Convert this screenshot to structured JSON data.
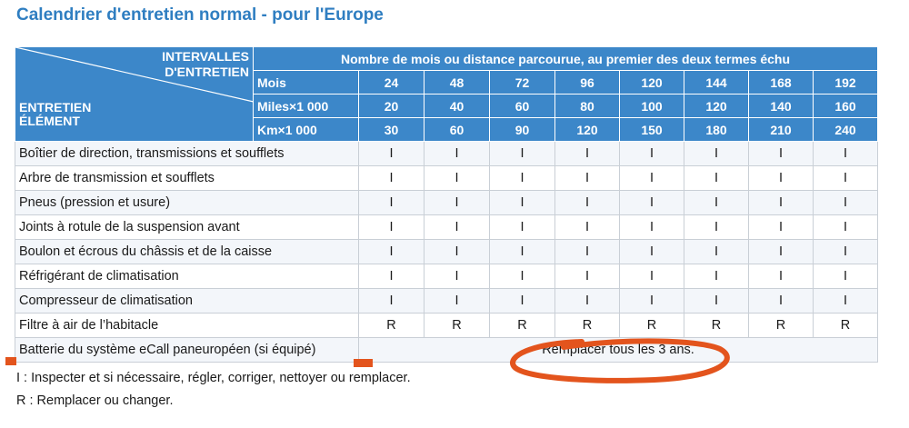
{
  "title": "Calendrier d'entretien normal - pour l'Europe",
  "header": {
    "intervals_line1": "INTERVALLES",
    "intervals_line2": "D'ENTRETIEN",
    "item_line1": "ENTRETIEN",
    "item_line2": "ÉLÉMENT",
    "span_title": "Nombre de mois ou distance parcourue, au premier des deux termes échu",
    "rows": [
      {
        "unit": "Mois",
        "values": [
          "24",
          "48",
          "72",
          "96",
          "120",
          "144",
          "168",
          "192"
        ]
      },
      {
        "unit": "Miles×1 000",
        "values": [
          "20",
          "40",
          "60",
          "80",
          "100",
          "120",
          "140",
          "160"
        ]
      },
      {
        "unit": "Km×1 000",
        "values": [
          "30",
          "60",
          "90",
          "120",
          "150",
          "180",
          "210",
          "240"
        ]
      }
    ]
  },
  "rows": [
    {
      "item": "Boîtier de direction, transmissions et soufflets",
      "values": [
        "I",
        "I",
        "I",
        "I",
        "I",
        "I",
        "I",
        "I"
      ]
    },
    {
      "item": "Arbre de transmission et soufflets",
      "values": [
        "I",
        "I",
        "I",
        "I",
        "I",
        "I",
        "I",
        "I"
      ]
    },
    {
      "item": "Pneus (pression et usure)",
      "values": [
        "I",
        "I",
        "I",
        "I",
        "I",
        "I",
        "I",
        "I"
      ]
    },
    {
      "item": "Joints à rotule de la suspension avant",
      "values": [
        "I",
        "I",
        "I",
        "I",
        "I",
        "I",
        "I",
        "I"
      ]
    },
    {
      "item": "Boulon et écrous du châssis et de la caisse",
      "values": [
        "I",
        "I",
        "I",
        "I",
        "I",
        "I",
        "I",
        "I"
      ]
    },
    {
      "item": "Réfrigérant de climatisation",
      "values": [
        "I",
        "I",
        "I",
        "I",
        "I",
        "I",
        "I",
        "I"
      ]
    },
    {
      "item": "Compresseur de climatisation",
      "values": [
        "I",
        "I",
        "I",
        "I",
        "I",
        "I",
        "I",
        "I"
      ]
    },
    {
      "item": "Filtre à air de l’habitacle",
      "values": [
        "R",
        "R",
        "R",
        "R",
        "R",
        "R",
        "R",
        "R"
      ]
    }
  ],
  "ecall_row": {
    "item": "Batterie du système eCall paneuropéen (si équipé)",
    "value": "Remplacer tous les 3 ans."
  },
  "legend": {
    "i": "I : Inspecter et si nécessaire, régler, corriger, nettoyer ou remplacer.",
    "r": "R : Remplacer ou changer."
  },
  "colors": {
    "title": "#2f7ec1",
    "header_bg": "#3c87c9",
    "annotation": "#e3541d"
  }
}
